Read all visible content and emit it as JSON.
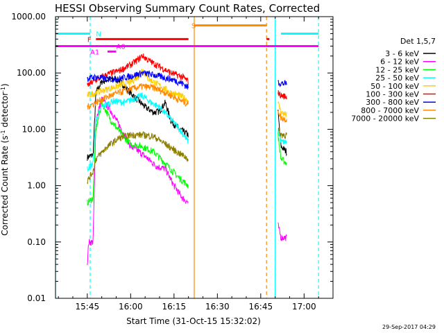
{
  "chart_data": {
    "type": "line",
    "title": "HESSI Observing Summary Count Rates, Corrected",
    "xlabel": "Start Time (31-Oct-15 15:32:02)",
    "ylabel_main": "Corrected Count Rate (s",
    "ylabel_sup": "-1",
    "ylabel_mid": " detector",
    "ylabel_end": ")",
    "y_scale": "log",
    "ylim": [
      0.01,
      1000
    ],
    "xlim_minutes": [
      "15:34",
      "17:10"
    ],
    "x_ticks": [
      {
        "t": "15:45",
        "label": "15:45"
      },
      {
        "t": "16:00",
        "label": "16:00"
      },
      {
        "t": "16:15",
        "label": "16:15"
      },
      {
        "t": "16:30",
        "label": "16:30"
      },
      {
        "t": "16:45",
        "label": "16:45"
      },
      {
        "t": "17:00",
        "label": "17:00"
      }
    ],
    "y_ticks": [
      {
        "v": 0.01,
        "label": "0.01"
      },
      {
        "v": 0.1,
        "label": "0.10"
      },
      {
        "v": 1,
        "label": "1.00"
      },
      {
        "v": 10,
        "label": "10.00"
      },
      {
        "v": 100,
        "label": "100.00"
      },
      {
        "v": 1000,
        "label": "1000.00"
      }
    ],
    "legend_title": "Det 1,5,7",
    "legend_placement": "right",
    "series": [
      {
        "name": "3 - 6 keV",
        "color": "#000000",
        "seg1": [
          [
            "15:45",
            3.2
          ],
          [
            "15:47",
            3.5
          ],
          [
            "15:48",
            45
          ],
          [
            "15:50",
            70
          ],
          [
            "15:53",
            80
          ],
          [
            "15:56",
            75
          ],
          [
            "15:59",
            50
          ],
          [
            "16:02",
            35
          ],
          [
            "16:05",
            25
          ],
          [
            "16:08",
            20
          ],
          [
            "16:10",
            21
          ],
          [
            "16:12",
            30
          ],
          [
            "16:14",
            14
          ],
          [
            "16:17",
            10
          ],
          [
            "16:20",
            8
          ]
        ],
        "seg2": [
          [
            "16:51",
            20
          ],
          [
            "16:52",
            5
          ],
          [
            "16:54",
            4
          ]
        ]
      },
      {
        "name": "6 - 12 keV",
        "color": "#ff00ff",
        "seg1": [
          [
            "15:45",
            0.04
          ],
          [
            "15:45.5",
            0.1
          ],
          [
            "15:47",
            0.1
          ],
          [
            "15:48",
            15
          ],
          [
            "15:50",
            35
          ],
          [
            "15:53",
            22
          ],
          [
            "15:56",
            12
          ],
          [
            "16:00",
            5
          ],
          [
            "16:03",
            4
          ],
          [
            "16:06",
            3
          ],
          [
            "16:09",
            2.2
          ],
          [
            "16:12",
            2
          ],
          [
            "16:15",
            1
          ],
          [
            "16:18",
            0.6
          ],
          [
            "16:20",
            0.5
          ]
        ],
        "seg2": [
          [
            "16:51",
            0.2
          ],
          [
            "16:52",
            0.12
          ],
          [
            "16:54",
            0.12
          ]
        ]
      },
      {
        "name": "12 - 25 keV",
        "color": "#00ff00",
        "seg1": [
          [
            "15:45",
            0.5
          ],
          [
            "15:47",
            0.6
          ],
          [
            "15:48",
            10
          ],
          [
            "15:50",
            30
          ],
          [
            "15:53",
            15
          ],
          [
            "15:57",
            8
          ],
          [
            "16:00",
            5.5
          ],
          [
            "16:04",
            5
          ],
          [
            "16:08",
            4
          ],
          [
            "16:12",
            2.5
          ],
          [
            "16:16",
            1.5
          ],
          [
            "16:20",
            1
          ]
        ],
        "seg2": [
          [
            "16:51",
            8
          ],
          [
            "16:52",
            3
          ],
          [
            "16:54",
            2.5
          ]
        ]
      },
      {
        "name": "25 - 50 keV",
        "color": "#00ffff",
        "seg1": [
          [
            "15:45",
            2
          ],
          [
            "15:47",
            2.5
          ],
          [
            "15:48",
            15
          ],
          [
            "15:50",
            25
          ],
          [
            "15:54",
            32
          ],
          [
            "15:58",
            30
          ],
          [
            "16:01",
            35
          ],
          [
            "16:04",
            40
          ],
          [
            "16:07",
            30
          ],
          [
            "16:10",
            25
          ],
          [
            "16:14",
            15
          ],
          [
            "16:17",
            10
          ],
          [
            "16:20",
            6
          ]
        ],
        "seg2": [
          [
            "16:51",
            10
          ],
          [
            "16:52",
            6
          ],
          [
            "16:54",
            6
          ]
        ]
      },
      {
        "name": "50 - 100 keV",
        "color": "#ffcc00",
        "seg1": [
          [
            "15:45",
            40
          ],
          [
            "15:48",
            45
          ],
          [
            "15:52",
            52
          ],
          [
            "15:56",
            60
          ],
          [
            "16:00",
            70
          ],
          [
            "16:03",
            90
          ],
          [
            "16:04",
            120
          ],
          [
            "16:06",
            80
          ],
          [
            "16:10",
            60
          ],
          [
            "16:14",
            45
          ],
          [
            "16:18",
            38
          ],
          [
            "16:20",
            32
          ]
        ],
        "seg2": [
          [
            "16:51",
            30
          ],
          [
            "16:52",
            20
          ],
          [
            "16:54",
            18
          ]
        ]
      },
      {
        "name": "100 - 300 keV",
        "color": "#ff0000",
        "seg1": [
          [
            "15:45",
            60
          ],
          [
            "15:48",
            75
          ],
          [
            "15:52",
            95
          ],
          [
            "15:56",
            110
          ],
          [
            "16:00",
            140
          ],
          [
            "16:03",
            180
          ],
          [
            "16:04",
            205
          ],
          [
            "16:06",
            170
          ],
          [
            "16:10",
            130
          ],
          [
            "16:14",
            100
          ],
          [
            "16:18",
            85
          ],
          [
            "16:20",
            70
          ]
        ],
        "seg2": [
          [
            "16:51",
            45
          ],
          [
            "16:52",
            40
          ],
          [
            "16:54",
            38
          ]
        ]
      },
      {
        "name": "300 - 800 keV",
        "color": "#0000ff",
        "seg1": [
          [
            "15:45",
            80
          ],
          [
            "15:48",
            85
          ],
          [
            "15:52",
            78
          ],
          [
            "15:56",
            80
          ],
          [
            "16:00",
            88
          ],
          [
            "16:04",
            100
          ],
          [
            "16:07",
            95
          ],
          [
            "16:11",
            85
          ],
          [
            "16:15",
            75
          ],
          [
            "16:18",
            65
          ],
          [
            "16:20",
            55
          ]
        ],
        "seg2": [
          [
            "16:51",
            70
          ],
          [
            "16:52",
            65
          ],
          [
            "16:54",
            65
          ]
        ]
      },
      {
        "name": "800 - 7000 keV",
        "color": "#ff8800",
        "seg1": [
          [
            "15:45",
            25
          ],
          [
            "15:48",
            30
          ],
          [
            "15:52",
            38
          ],
          [
            "15:56",
            45
          ],
          [
            "16:00",
            52
          ],
          [
            "16:04",
            58
          ],
          [
            "16:08",
            55
          ],
          [
            "16:12",
            45
          ],
          [
            "16:16",
            35
          ],
          [
            "16:20",
            28
          ]
        ],
        "seg2": [
          [
            "16:51",
            22
          ],
          [
            "16:52",
            16
          ],
          [
            "16:54",
            15
          ]
        ]
      },
      {
        "name": "7000 - 20000 keV",
        "color": "#8b7d00",
        "seg1": [
          [
            "15:45",
            1.2
          ],
          [
            "15:47",
            1.8
          ],
          [
            "15:48",
            3
          ],
          [
            "15:52",
            5
          ],
          [
            "15:56",
            7
          ],
          [
            "16:00",
            8
          ],
          [
            "16:04",
            8
          ],
          [
            "16:08",
            7.5
          ],
          [
            "16:12",
            5.5
          ],
          [
            "16:16",
            4
          ],
          [
            "16:20",
            3
          ]
        ],
        "seg2": [
          [
            "16:51",
            10
          ],
          [
            "16:52",
            8
          ],
          [
            "16:54",
            8
          ]
        ]
      }
    ],
    "flags": [
      {
        "label": "N",
        "color": "#00ffff",
        "y": 500,
        "ranges": [
          [
            "15:34",
            "15:46"
          ],
          [
            "16:52",
            "17:05"
          ]
        ],
        "label_at": "15:48"
      },
      {
        "label": "F",
        "color": "#ff0000",
        "y": 400,
        "ranges": [
          [
            "15:48",
            "16:20"
          ],
          [
            "16:47",
            "16:48"
          ]
        ],
        "label_at": "15:45"
      },
      {
        "label": "S",
        "color": "#ff8800",
        "y": 700,
        "ranges": [
          [
            "16:22",
            "16:47"
          ]
        ],
        "label_at": "16:21"
      },
      {
        "label": "",
        "color": "#ff00ff",
        "y": 300,
        "ranges": [
          [
            "15:34",
            "17:05"
          ]
        ],
        "label_at": ""
      },
      {
        "label": "A1",
        "color": "#ff00ff",
        "y": 240,
        "ranges": [
          [
            "15:52",
            "15:55"
          ]
        ],
        "label_at": "15:46"
      },
      {
        "label": "A0",
        "color": "#ff00ff",
        "y": 300,
        "ranges": [],
        "label_at": "15:55"
      }
    ],
    "vlines": [
      {
        "t": "15:34",
        "color": "#00ffff",
        "style": "solid"
      },
      {
        "t": "15:46",
        "color": "#00ffff",
        "style": "dash"
      },
      {
        "t": "16:22",
        "color": "#ff8800",
        "style": "solid"
      },
      {
        "t": "16:47",
        "color": "#ff8800",
        "style": "dash"
      },
      {
        "t": "16:50",
        "color": "#00ffff",
        "style": "solid"
      },
      {
        "t": "17:05",
        "color": "#00ffff",
        "style": "dash"
      }
    ],
    "timestamp": "29-Sep-2017 04:29"
  }
}
